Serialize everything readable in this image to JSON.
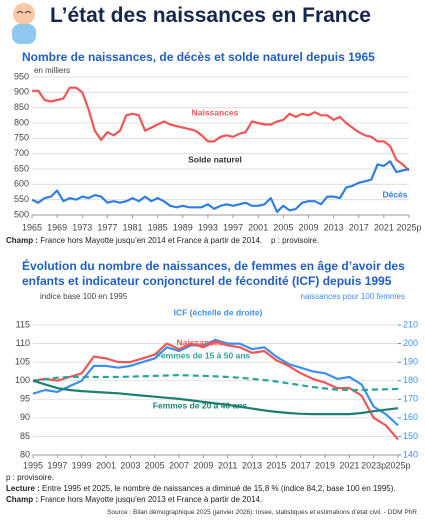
{
  "title": "L’état des naissances en France",
  "chart_data": [
    {
      "type": "line",
      "title": "Nombre de naissances, de décès et solde naturel depuis 1965",
      "y_unit_label": "en milliers",
      "x": [
        1965,
        1966,
        1967,
        1968,
        1969,
        1970,
        1971,
        1972,
        1973,
        1974,
        1975,
        1976,
        1977,
        1978,
        1979,
        1980,
        1981,
        1982,
        1983,
        1984,
        1985,
        1986,
        1987,
        1988,
        1989,
        1990,
        1991,
        1992,
        1993,
        1994,
        1995,
        1996,
        1997,
        1998,
        1999,
        2000,
        2001,
        2002,
        2003,
        2004,
        2005,
        2006,
        2007,
        2008,
        2009,
        2010,
        2011,
        2012,
        2013,
        2014,
        2015,
        2016,
        2017,
        2018,
        2019,
        2020,
        2021,
        2022,
        2023,
        2024,
        2025
      ],
      "xlim": [
        1965,
        2025
      ],
      "xticks": [
        1965,
        1969,
        1973,
        1977,
        1981,
        1985,
        1989,
        1993,
        1997,
        2001,
        2005,
        2009,
        2013,
        2017,
        2021,
        {
          "value": 2025,
          "label": "2025p"
        }
      ],
      "ylim": [
        500,
        950
      ],
      "yticks": [
        500,
        550,
        600,
        650,
        700,
        750,
        800,
        850,
        900,
        950
      ],
      "grid": true,
      "series": [
        {
          "name": "Naissances",
          "color": "#ef5656",
          "values": [
            905,
            905,
            875,
            870,
            875,
            880,
            915,
            915,
            900,
            845,
            775,
            745,
            770,
            760,
            775,
            825,
            830,
            825,
            775,
            785,
            795,
            805,
            795,
            790,
            785,
            780,
            775,
            760,
            740,
            740,
            755,
            760,
            755,
            765,
            770,
            805,
            800,
            795,
            795,
            805,
            810,
            830,
            820,
            830,
            825,
            835,
            825,
            825,
            810,
            820,
            800,
            785,
            770,
            760,
            755,
            740,
            740,
            725,
            680,
            665,
            645
          ]
        },
        {
          "name": "Décès",
          "color": "#2f7ee3",
          "values": [
            550,
            540,
            555,
            560,
            580,
            545,
            555,
            550,
            560,
            555,
            565,
            560,
            540,
            545,
            540,
            545,
            555,
            545,
            560,
            545,
            555,
            545,
            530,
            525,
            530,
            525,
            525,
            525,
            535,
            520,
            530,
            535,
            530,
            535,
            540,
            530,
            530,
            535,
            555,
            510,
            530,
            515,
            520,
            540,
            545,
            545,
            535,
            560,
            560,
            555,
            590,
            595,
            605,
            610,
            615,
            665,
            660,
            675,
            640,
            645,
            650
          ]
        }
      ],
      "annotations": [
        "Solde naturel"
      ]
    },
    {
      "type": "line",
      "title": "Évolution du nombre de naissances, de femmes en âge d’avoir des enfants et indicateur conjoncturel de fécondité (ICF) depuis 1995",
      "y_unit_label": "indice base 100 en 1995",
      "y2_unit_label": "naissances pour 100 femmes",
      "x": [
        1995,
        1996,
        1997,
        1998,
        1999,
        2000,
        2001,
        2002,
        2003,
        2004,
        2005,
        2006,
        2007,
        2008,
        2009,
        2010,
        2011,
        2012,
        2013,
        2014,
        2015,
        2016,
        2017,
        2018,
        2019,
        2020,
        2021,
        2022,
        2023,
        2024,
        2025
      ],
      "xlim": [
        1995,
        2025
      ],
      "xticks": [
        1995,
        1997,
        1999,
        2001,
        2003,
        2005,
        2007,
        2009,
        2011,
        2013,
        2015,
        2017,
        2019,
        2021,
        {
          "value": 2023,
          "label": "2023p"
        },
        {
          "value": 2025,
          "label": "2025p"
        }
      ],
      "ylim": [
        80,
        115
      ],
      "yticks": [
        80,
        85,
        90,
        95,
        100,
        105,
        110,
        115
      ],
      "y2lim": [
        140,
        210
      ],
      "y2ticks": [
        140,
        150,
        160,
        170,
        180,
        190,
        200,
        210
      ],
      "grid": true,
      "series": [
        {
          "name": "ICF (échelle de droite)",
          "color": "#3d8fef",
          "axis": "y2",
          "values": [
            173,
            175,
            174,
            177,
            180,
            188,
            188,
            187,
            188,
            190,
            192,
            198,
            196,
            199,
            199,
            202,
            200,
            200,
            197,
            198,
            193,
            189,
            187,
            185,
            184,
            181,
            182,
            178,
            166,
            162,
            156
          ]
        },
        {
          "name": "Naissances",
          "color": "#ef5656",
          "values": [
            100,
            100.5,
            100,
            101,
            102,
            106.5,
            106,
            105,
            105,
            106,
            107,
            110,
            108.5,
            110,
            109,
            110.5,
            109.5,
            109,
            107.5,
            108,
            105.5,
            104,
            102,
            100.5,
            99.5,
            98,
            98,
            96,
            90,
            88,
            84.2
          ]
        },
        {
          "name": "Femmes de 15 à 50 ans",
          "color": "#2aa39b",
          "dash": true,
          "values": [
            100,
            100.4,
            100.8,
            101,
            101,
            101,
            101,
            101,
            101.1,
            101.2,
            101.3,
            101.4,
            101.5,
            101.4,
            101.3,
            101.2,
            101,
            100.8,
            100.5,
            100.2,
            99.8,
            99.3,
            98.8,
            98.3,
            97.9,
            97.6,
            97.5,
            97.5,
            97.6,
            97.7,
            97.8
          ]
        },
        {
          "name": "Femmes de 20 à 40 ans",
          "color": "#1d7f72",
          "values": [
            100,
            99,
            98,
            97.5,
            97.2,
            97,
            96.8,
            96.6,
            96.3,
            96,
            95.7,
            95.4,
            95.1,
            94.7,
            94.3,
            93.9,
            93.5,
            93,
            92.5,
            92,
            91.6,
            91.3,
            91.1,
            91,
            91,
            91,
            91,
            91.3,
            91.8,
            92.2,
            92.6
          ]
        }
      ]
    }
  ],
  "notes": [
    {
      "label": "Champ :",
      "text": "France hors Mayotte jusqu’en 2014 et France à partir de 2014.    p : provisoire."
    },
    {
      "text": "p : provisoire."
    },
    {
      "label": "Lecture :",
      "text": "Entre 1995 et 2025, le nombre de naissances a diminué de 15,8 % (indice 84,2, base 100 en 1995)."
    },
    {
      "label": "Champ :",
      "text": "France hors Mayotte jusqu’en 2013 et France à partir de 2014."
    }
  ],
  "source": "Source : Bilan démographique 2025 (janvier 2026). Insee, statistiques et estimations d’état civil. - DDM PhR"
}
